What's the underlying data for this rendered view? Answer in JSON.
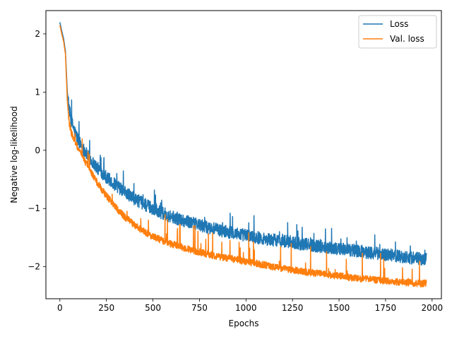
{
  "chart_data": {
    "type": "line",
    "title": "",
    "xlabel": "Epochs",
    "ylabel": "Negative log-likelihood",
    "xlim": [
      -75,
      2050
    ],
    "ylim": [
      -2.55,
      2.4
    ],
    "xticks": [
      0,
      250,
      500,
      750,
      1000,
      1250,
      1500,
      1750,
      2000
    ],
    "xtick_labels": [
      "0",
      "250",
      "500",
      "750",
      "1000",
      "1250",
      "1500",
      "1750",
      "2000"
    ],
    "yticks": [
      -2,
      -1,
      0,
      1,
      2
    ],
    "ytick_labels": [
      "−2",
      "−1",
      "0",
      "1",
      "2"
    ],
    "grid": false,
    "legend": {
      "placement": "top-right"
    },
    "series": [
      {
        "name": "Loss",
        "color": "#1f77b4",
        "x": [
          0,
          10,
          20,
          30,
          40,
          50,
          60,
          80,
          100,
          125,
          150,
          175,
          200,
          225,
          250,
          300,
          350,
          400,
          450,
          500,
          550,
          600,
          650,
          700,
          750,
          800,
          850,
          900,
          950,
          1000,
          1050,
          1100,
          1150,
          1200,
          1250,
          1300,
          1350,
          1400,
          1450,
          1500,
          1550,
          1600,
          1650,
          1700,
          1750,
          1800,
          1850,
          1900,
          1950,
          1970
        ],
        "y": [
          2.2,
          2.05,
          1.92,
          1.7,
          1.0,
          0.72,
          0.52,
          0.32,
          0.17,
          0.03,
          -0.1,
          -0.2,
          -0.3,
          -0.38,
          -0.46,
          -0.6,
          -0.72,
          -0.83,
          -0.92,
          -1.0,
          -1.08,
          -1.14,
          -1.19,
          -1.24,
          -1.29,
          -1.33,
          -1.37,
          -1.4,
          -1.43,
          -1.46,
          -1.49,
          -1.52,
          -1.54,
          -1.56,
          -1.58,
          -1.61,
          -1.63,
          -1.65,
          -1.67,
          -1.69,
          -1.71,
          -1.73,
          -1.75,
          -1.77,
          -1.79,
          -1.81,
          -1.83,
          -1.85,
          -1.87,
          -1.86
        ]
      },
      {
        "name": "Val. loss",
        "color": "#ff7f0e",
        "x": [
          0,
          10,
          20,
          30,
          40,
          50,
          60,
          80,
          100,
          125,
          150,
          175,
          200,
          225,
          250,
          300,
          350,
          400,
          450,
          500,
          550,
          600,
          650,
          700,
          750,
          800,
          850,
          900,
          950,
          1000,
          1050,
          1100,
          1150,
          1200,
          1250,
          1300,
          1350,
          1400,
          1450,
          1500,
          1550,
          1600,
          1650,
          1700,
          1750,
          1800,
          1850,
          1900,
          1950,
          1970
        ],
        "y": [
          2.15,
          2.0,
          1.87,
          1.65,
          0.85,
          0.48,
          0.32,
          0.15,
          0.02,
          -0.13,
          -0.28,
          -0.42,
          -0.55,
          -0.67,
          -0.78,
          -0.98,
          -1.15,
          -1.28,
          -1.39,
          -1.48,
          -1.55,
          -1.61,
          -1.66,
          -1.71,
          -1.75,
          -1.79,
          -1.82,
          -1.85,
          -1.88,
          -1.91,
          -1.94,
          -1.97,
          -2.0,
          -2.03,
          -2.05,
          -2.08,
          -2.1,
          -2.12,
          -2.14,
          -2.16,
          -2.18,
          -2.2,
          -2.21,
          -2.23,
          -2.24,
          -2.26,
          -2.27,
          -2.28,
          -2.29,
          -2.27
        ]
      }
    ]
  }
}
